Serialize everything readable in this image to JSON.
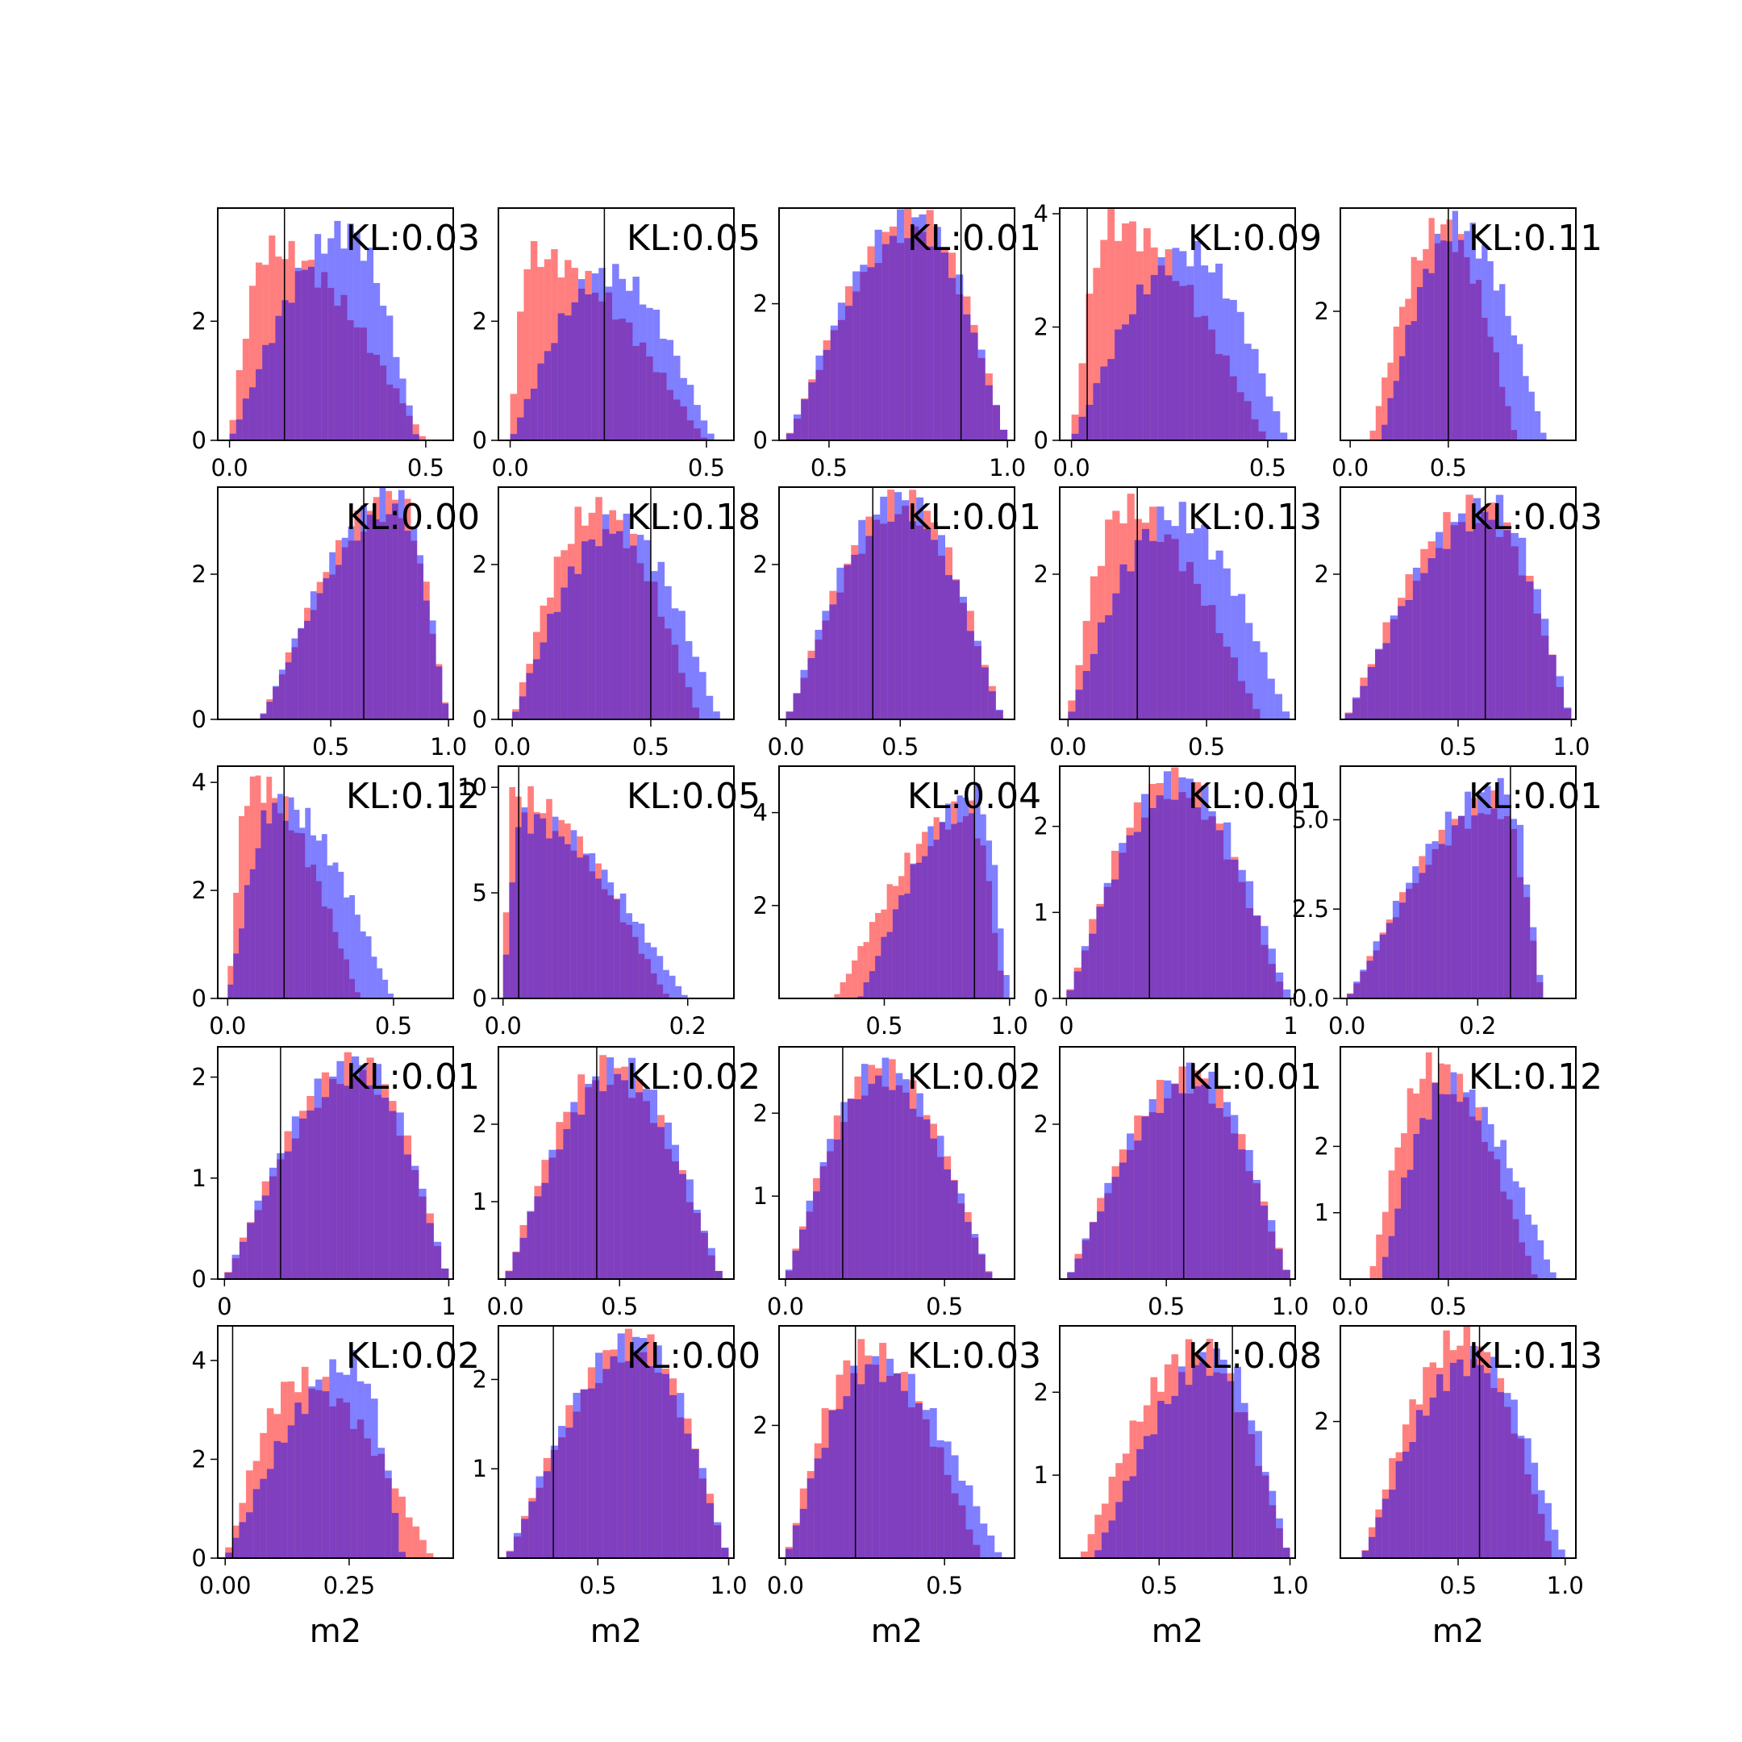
{
  "chart_data": {
    "type": "histogram-grid",
    "rows": 5,
    "cols": 5,
    "xlabel": "m2",
    "series_colors": [
      "#ff0000",
      "#0000ff"
    ],
    "overlap_color": "#7f3fbf",
    "panels": [
      {
        "kl": "KL:0.03",
        "xlim": [
          -0.03,
          0.57
        ],
        "ylim": [
          0,
          3.9
        ],
        "xticks": [
          "0.0",
          "0.5"
        ],
        "xtick_vals": [
          0,
          0.5
        ],
        "yticks": [
          "0",
          "2"
        ],
        "ytick_vals": [
          0,
          2
        ],
        "marker": 0.14,
        "dist_a": {
          "lo": 0.0,
          "hi": 0.5,
          "mode": 0.1,
          "max": 3.2,
          "bins": 30
        },
        "dist_b": {
          "lo": 0.0,
          "hi": 0.48,
          "mode": 0.3,
          "max": 3.5,
          "bins": 30
        }
      },
      {
        "kl": "KL:0.05",
        "xlim": [
          -0.03,
          0.57
        ],
        "ylim": [
          0,
          3.9
        ],
        "xticks": [
          "0.0",
          "0.5"
        ],
        "xtick_vals": [
          0,
          0.5
        ],
        "yticks": [
          "0",
          "2"
        ],
        "ytick_vals": [
          0,
          2
        ],
        "marker": 0.24,
        "dist_a": {
          "lo": 0.0,
          "hi": 0.5,
          "mode": 0.05,
          "max": 3.1,
          "bins": 30
        },
        "dist_b": {
          "lo": 0.0,
          "hi": 0.52,
          "mode": 0.25,
          "max": 2.8,
          "bins": 30
        }
      },
      {
        "kl": "KL:0.01",
        "xlim": [
          0.36,
          1.02
        ],
        "ylim": [
          0,
          3.4
        ],
        "xticks": [
          "0.5",
          "1.0"
        ],
        "xtick_vals": [
          0.5,
          1.0
        ],
        "yticks": [
          "0",
          "2"
        ],
        "ytick_vals": [
          0,
          2
        ],
        "marker": 0.87,
        "dist_a": {
          "lo": 0.38,
          "hi": 1.0,
          "mode": 0.75,
          "max": 3.2,
          "bins": 30
        },
        "dist_b": {
          "lo": 0.38,
          "hi": 1.0,
          "mode": 0.74,
          "max": 3.2,
          "bins": 30
        }
      },
      {
        "kl": "KL:0.09",
        "xlim": [
          -0.03,
          0.57
        ],
        "ylim": [
          0,
          4.1
        ],
        "xticks": [
          "0.0",
          "0.5"
        ],
        "xtick_vals": [
          0,
          0.5
        ],
        "yticks": [
          "0",
          "2",
          "4"
        ],
        "ytick_vals": [
          0,
          2,
          4
        ],
        "marker": 0.04,
        "dist_a": {
          "lo": 0.0,
          "hi": 0.5,
          "mode": 0.1,
          "max": 3.8,
          "bins": 30
        },
        "dist_b": {
          "lo": 0.0,
          "hi": 0.55,
          "mode": 0.3,
          "max": 3.3,
          "bins": 30
        }
      },
      {
        "kl": "KL:0.11",
        "xlim": [
          -0.05,
          1.15
        ],
        "ylim": [
          0,
          3.6
        ],
        "xticks": [
          "0.0",
          "0.5"
        ],
        "xtick_vals": [
          0,
          0.5
        ],
        "yticks": [
          "2"
        ],
        "ytick_vals": [
          2
        ],
        "marker": 0.5,
        "dist_a": {
          "lo": 0.1,
          "hi": 0.85,
          "mode": 0.47,
          "max": 3.3,
          "bins": 30
        },
        "dist_b": {
          "lo": 0.15,
          "hi": 1.0,
          "mode": 0.55,
          "max": 3.3,
          "bins": 30
        }
      },
      {
        "kl": "KL:0.00",
        "xlim": [
          0.02,
          1.02
        ],
        "ylim": [
          0,
          3.2
        ],
        "xticks": [
          "0.5",
          "1.0"
        ],
        "xtick_vals": [
          0.5,
          1.0
        ],
        "yticks": [
          "0",
          "2"
        ],
        "ytick_vals": [
          0,
          2
        ],
        "marker": 0.64,
        "dist_a": {
          "lo": 0.2,
          "hi": 1.0,
          "mode": 0.78,
          "max": 3.0,
          "bins": 30
        },
        "dist_b": {
          "lo": 0.2,
          "hi": 1.0,
          "mode": 0.78,
          "max": 3.0,
          "bins": 30
        }
      },
      {
        "kl": "KL:0.18",
        "xlim": [
          -0.05,
          0.8
        ],
        "ylim": [
          0,
          3.0
        ],
        "xticks": [
          "0.0",
          "0.5"
        ],
        "xtick_vals": [
          0,
          0.5
        ],
        "yticks": [
          "0",
          "2"
        ],
        "ytick_vals": [
          0,
          2
        ],
        "marker": 0.5,
        "dist_a": {
          "lo": 0.0,
          "hi": 0.68,
          "mode": 0.3,
          "max": 2.7,
          "bins": 30
        },
        "dist_b": {
          "lo": 0.0,
          "hi": 0.75,
          "mode": 0.38,
          "max": 2.5,
          "bins": 30
        }
      },
      {
        "kl": "KL:0.01",
        "xlim": [
          -0.03,
          1.0
        ],
        "ylim": [
          0,
          3.0
        ],
        "xticks": [
          "0.0",
          "0.5"
        ],
        "xtick_vals": [
          0,
          0.5
        ],
        "yticks": [
          "2"
        ],
        "ytick_vals": [
          2
        ],
        "marker": 0.38,
        "dist_a": {
          "lo": 0.0,
          "hi": 0.95,
          "mode": 0.52,
          "max": 2.8,
          "bins": 30
        },
        "dist_b": {
          "lo": 0.0,
          "hi": 0.95,
          "mode": 0.5,
          "max": 2.8,
          "bins": 30
        }
      },
      {
        "kl": "KL:0.13",
        "xlim": [
          -0.03,
          0.82
        ],
        "ylim": [
          0,
          3.2
        ],
        "xticks": [
          "0.0",
          "0.5"
        ],
        "xtick_vals": [
          0,
          0.5
        ],
        "yticks": [
          "2"
        ],
        "ytick_vals": [
          2
        ],
        "marker": 0.25,
        "dist_a": {
          "lo": 0.0,
          "hi": 0.7,
          "mode": 0.2,
          "max": 2.9,
          "bins": 30
        },
        "dist_b": {
          "lo": 0.0,
          "hi": 0.8,
          "mode": 0.38,
          "max": 2.8,
          "bins": 30
        }
      },
      {
        "kl": "KL:0.03",
        "xlim": [
          -0.02,
          1.02
        ],
        "ylim": [
          0,
          3.2
        ],
        "xticks": [
          "0.5",
          "1.0"
        ],
        "xtick_vals": [
          0.5,
          1.0
        ],
        "yticks": [
          "2"
        ],
        "ytick_vals": [
          2
        ],
        "marker": 0.62,
        "dist_a": {
          "lo": 0.0,
          "hi": 1.0,
          "mode": 0.6,
          "max": 2.9,
          "bins": 30
        },
        "dist_b": {
          "lo": 0.0,
          "hi": 1.0,
          "mode": 0.65,
          "max": 2.9,
          "bins": 30
        }
      },
      {
        "kl": "KL:0.12",
        "xlim": [
          -0.03,
          0.68
        ],
        "ylim": [
          0,
          4.3
        ],
        "xticks": [
          "0.0",
          "0.5"
        ],
        "xtick_vals": [
          0,
          0.5
        ],
        "yticks": [
          "0",
          "2",
          "4"
        ],
        "ytick_vals": [
          0,
          2,
          4
        ],
        "marker": 0.17,
        "dist_a": {
          "lo": 0.0,
          "hi": 0.4,
          "mode": 0.07,
          "max": 4.0,
          "bins": 30
        },
        "dist_b": {
          "lo": 0.0,
          "hi": 0.5,
          "mode": 0.15,
          "max": 3.6,
          "bins": 30
        }
      },
      {
        "kl": "KL:0.05",
        "xlim": [
          -0.005,
          0.25
        ],
        "ylim": [
          0,
          11
        ],
        "xticks": [
          "0.0",
          "0.2"
        ],
        "xtick_vals": [
          0,
          0.2
        ],
        "yticks": [
          "0",
          "5",
          "10"
        ],
        "ytick_vals": [
          0,
          5,
          10
        ],
        "marker": 0.017,
        "dist_a": {
          "lo": 0.0,
          "hi": 0.18,
          "mode": 0.01,
          "max": 9.5,
          "bins": 30
        },
        "dist_b": {
          "lo": 0.0,
          "hi": 0.2,
          "mode": 0.02,
          "max": 8.5,
          "bins": 30
        }
      },
      {
        "kl": "KL:0.04",
        "xlim": [
          0.08,
          1.02
        ],
        "ylim": [
          0,
          5.0
        ],
        "xticks": [
          "0.5",
          "1.0"
        ],
        "xtick_vals": [
          0.5,
          1.0
        ],
        "yticks": [
          "2",
          "4"
        ],
        "ytick_vals": [
          2,
          4
        ],
        "marker": 0.86,
        "dist_a": {
          "lo": 0.3,
          "hi": 0.98,
          "mode": 0.84,
          "max": 4.0,
          "bins": 30
        },
        "dist_b": {
          "lo": 0.4,
          "hi": 1.0,
          "mode": 0.87,
          "max": 4.3,
          "bins": 30
        }
      },
      {
        "kl": "KL:0.01",
        "xlim": [
          -0.03,
          1.02
        ],
        "ylim": [
          0,
          2.7
        ],
        "xticks": [
          "0",
          "1"
        ],
        "xtick_vals": [
          0,
          1
        ],
        "yticks": [
          "0",
          "1",
          "2"
        ],
        "ytick_vals": [
          0,
          1,
          2
        ],
        "marker": 0.37,
        "dist_a": {
          "lo": 0.0,
          "hi": 0.98,
          "mode": 0.47,
          "max": 2.5,
          "bins": 30
        },
        "dist_b": {
          "lo": 0.0,
          "hi": 1.0,
          "mode": 0.5,
          "max": 2.5,
          "bins": 30
        }
      },
      {
        "kl": "KL:0.01",
        "xlim": [
          -0.01,
          0.35
        ],
        "ylim": [
          0,
          6.5
        ],
        "xticks": [
          "0.0",
          "0.2"
        ],
        "xtick_vals": [
          0,
          0.2
        ],
        "yticks": [
          "0.0",
          "2.5",
          "5.0"
        ],
        "ytick_vals": [
          0,
          2.5,
          5.0
        ],
        "marker": 0.25,
        "dist_a": {
          "lo": 0.0,
          "hi": 0.3,
          "mode": 0.23,
          "max": 5.4,
          "bins": 30
        },
        "dist_b": {
          "lo": 0.0,
          "hi": 0.3,
          "mode": 0.24,
          "max": 5.8,
          "bins": 30
        }
      },
      {
        "kl": "KL:0.01",
        "xlim": [
          -0.03,
          1.02
        ],
        "ylim": [
          0,
          2.3
        ],
        "xticks": [
          "0",
          "1"
        ],
        "xtick_vals": [
          0,
          1
        ],
        "yticks": [
          "0",
          "1",
          "2"
        ],
        "ytick_vals": [
          0,
          1,
          2
        ],
        "marker": 0.25,
        "dist_a": {
          "lo": 0.0,
          "hi": 1.0,
          "mode": 0.6,
          "max": 2.1,
          "bins": 30
        },
        "dist_b": {
          "lo": 0.0,
          "hi": 1.0,
          "mode": 0.6,
          "max": 2.1,
          "bins": 30
        }
      },
      {
        "kl": "KL:0.02",
        "xlim": [
          -0.03,
          1.0
        ],
        "ylim": [
          0,
          3.0
        ],
        "xticks": [
          "0.0",
          "0.5"
        ],
        "xtick_vals": [
          0,
          0.5
        ],
        "yticks": [
          "1",
          "2"
        ],
        "ytick_vals": [
          1,
          2
        ],
        "marker": 0.4,
        "dist_a": {
          "lo": 0.0,
          "hi": 0.95,
          "mode": 0.45,
          "max": 2.7,
          "bins": 30
        },
        "dist_b": {
          "lo": 0.0,
          "hi": 0.95,
          "mode": 0.5,
          "max": 2.7,
          "bins": 30
        }
      },
      {
        "kl": "KL:0.02",
        "xlim": [
          -0.02,
          0.72
        ],
        "ylim": [
          0,
          2.8
        ],
        "xticks": [
          "0.0",
          "0.5"
        ],
        "xtick_vals": [
          0,
          0.5
        ],
        "yticks": [
          "1",
          "2"
        ],
        "ytick_vals": [
          1,
          2
        ],
        "marker": 0.18,
        "dist_a": {
          "lo": 0.0,
          "hi": 0.65,
          "mode": 0.3,
          "max": 2.5,
          "bins": 30
        },
        "dist_b": {
          "lo": 0.0,
          "hi": 0.65,
          "mode": 0.3,
          "max": 2.5,
          "bins": 30
        }
      },
      {
        "kl": "KL:0.01",
        "xlim": [
          0.07,
          1.02
        ],
        "ylim": [
          0,
          3.0
        ],
        "xticks": [
          "0.5",
          "1.0"
        ],
        "xtick_vals": [
          0.5,
          1.0
        ],
        "yticks": [
          "2"
        ],
        "ytick_vals": [
          2
        ],
        "marker": 0.57,
        "dist_a": {
          "lo": 0.1,
          "hi": 1.0,
          "mode": 0.6,
          "max": 2.6,
          "bins": 30
        },
        "dist_b": {
          "lo": 0.1,
          "hi": 1.0,
          "mode": 0.62,
          "max": 2.6,
          "bins": 30
        }
      },
      {
        "kl": "KL:0.12",
        "xlim": [
          -0.05,
          1.15
        ],
        "ylim": [
          0,
          3.5
        ],
        "xticks": [
          "0.0",
          "0.5"
        ],
        "xtick_vals": [
          0,
          0.5
        ],
        "yticks": [
          "1",
          "2"
        ],
        "ytick_vals": [
          1,
          2
        ],
        "marker": 0.45,
        "dist_a": {
          "lo": 0.1,
          "hi": 0.95,
          "mode": 0.42,
          "max": 3.2,
          "bins": 30
        },
        "dist_b": {
          "lo": 0.15,
          "hi": 1.05,
          "mode": 0.5,
          "max": 2.9,
          "bins": 30
        }
      },
      {
        "kl": "KL:0.02",
        "xlim": [
          -0.015,
          0.46
        ],
        "ylim": [
          0,
          4.7
        ],
        "xticks": [
          "0.00",
          "0.25"
        ],
        "xtick_vals": [
          0,
          0.25
        ],
        "yticks": [
          "0",
          "2",
          "4"
        ],
        "ytick_vals": [
          0,
          2,
          4
        ],
        "marker": 0.015,
        "dist_a": {
          "lo": 0.0,
          "hi": 0.42,
          "mode": 0.15,
          "max": 3.6,
          "bins": 30
        },
        "dist_b": {
          "lo": 0.0,
          "hi": 0.36,
          "mode": 0.26,
          "max": 3.9,
          "bins": 30
        }
      },
      {
        "kl": "KL:0.00",
        "xlim": [
          0.12,
          1.02
        ],
        "ylim": [
          0,
          2.6
        ],
        "xticks": [
          "0.5",
          "1.0"
        ],
        "xtick_vals": [
          0.5,
          1.0
        ],
        "yticks": [
          "1",
          "2"
        ],
        "ytick_vals": [
          1,
          2
        ],
        "marker": 0.33,
        "dist_a": {
          "lo": 0.15,
          "hi": 1.0,
          "mode": 0.65,
          "max": 2.4,
          "bins": 30
        },
        "dist_b": {
          "lo": 0.15,
          "hi": 1.0,
          "mode": 0.65,
          "max": 2.4,
          "bins": 30
        }
      },
      {
        "kl": "KL:0.03",
        "xlim": [
          -0.02,
          0.72
        ],
        "ylim": [
          0,
          3.5
        ],
        "xticks": [
          "0.0",
          "0.5"
        ],
        "xtick_vals": [
          0,
          0.5
        ],
        "yticks": [
          "2"
        ],
        "ytick_vals": [
          2
        ],
        "marker": 0.22,
        "dist_a": {
          "lo": 0.0,
          "hi": 0.62,
          "mode": 0.25,
          "max": 3.1,
          "bins": 30
        },
        "dist_b": {
          "lo": 0.0,
          "hi": 0.68,
          "mode": 0.28,
          "max": 2.9,
          "bins": 30
        }
      },
      {
        "kl": "KL:0.08",
        "xlim": [
          0.12,
          1.02
        ],
        "ylim": [
          0,
          2.8
        ],
        "xticks": [
          "0.5",
          "1.0"
        ],
        "xtick_vals": [
          0.5,
          1.0
        ],
        "yticks": [
          "1",
          "2"
        ],
        "ytick_vals": [
          1,
          2
        ],
        "marker": 0.78,
        "dist_a": {
          "lo": 0.2,
          "hi": 1.0,
          "mode": 0.65,
          "max": 2.5,
          "bins": 30
        },
        "dist_b": {
          "lo": 0.25,
          "hi": 1.0,
          "mode": 0.72,
          "max": 2.4,
          "bins": 30
        }
      },
      {
        "kl": "KL:0.13",
        "xlim": [
          -0.05,
          1.05
        ],
        "ylim": [
          0,
          3.4
        ],
        "xticks": [
          "0.5",
          "1.0"
        ],
        "xtick_vals": [
          0.5,
          1.0
        ],
        "yticks": [
          "2"
        ],
        "ytick_vals": [
          2
        ],
        "marker": 0.6,
        "dist_a": {
          "lo": 0.05,
          "hi": 0.95,
          "mode": 0.52,
          "max": 3.2,
          "bins": 30
        },
        "dist_b": {
          "lo": 0.05,
          "hi": 1.0,
          "mode": 0.58,
          "max": 2.9,
          "bins": 30
        }
      }
    ]
  }
}
